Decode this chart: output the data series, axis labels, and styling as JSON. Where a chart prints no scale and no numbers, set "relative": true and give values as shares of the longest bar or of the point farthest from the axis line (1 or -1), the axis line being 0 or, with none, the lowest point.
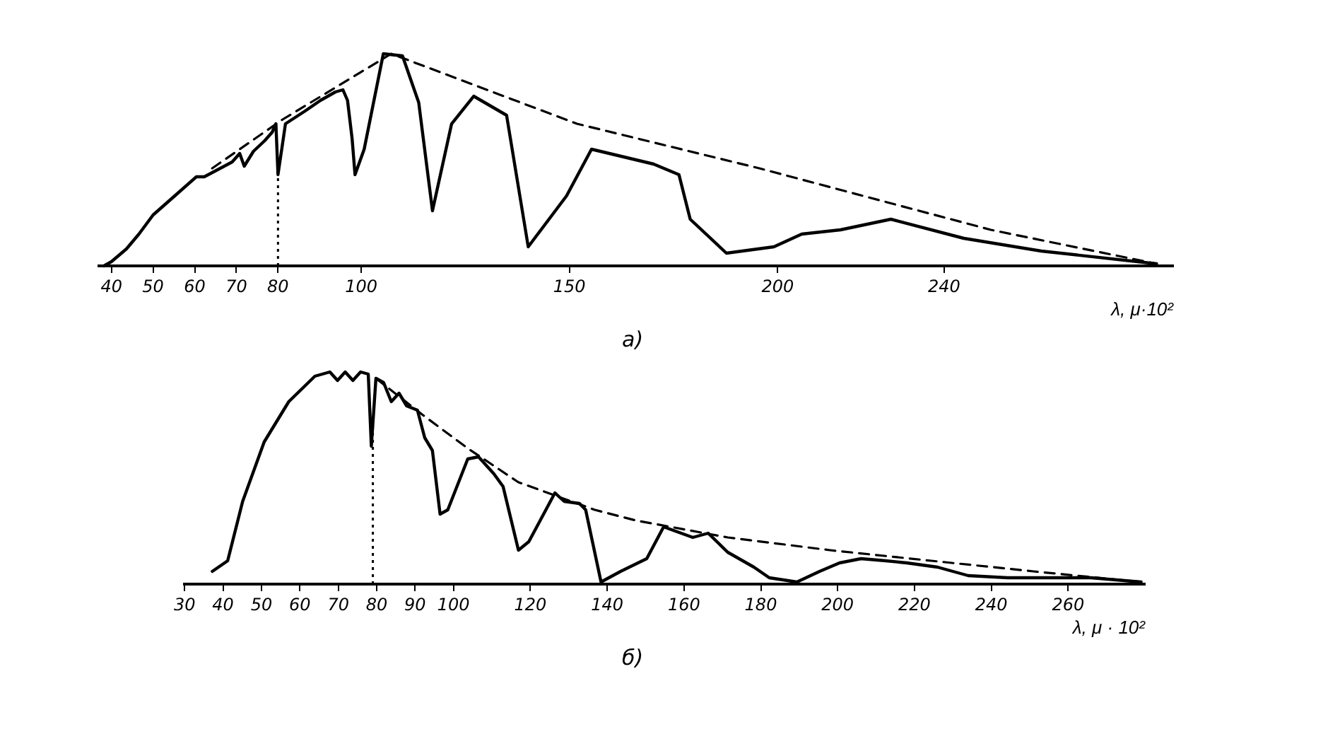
{
  "chart_data": [
    {
      "type": "line",
      "relative": true,
      "xlabel": "λ, μ·10²",
      "xlim": [
        37,
        295
      ],
      "xticks": [
        40,
        50,
        60,
        70,
        80,
        100,
        150,
        200,
        240
      ],
      "tick_labels": "x",
      "grid": false,
      "legend": false,
      "marker": "none",
      "annotations": [
        "а)"
      ],
      "ref_lines": [
        {
          "axis": "x",
          "value": 80,
          "line_style": "dotted",
          "color": "#000000"
        }
      ],
      "series": [
        {
          "color": "#000000",
          "line_style": "solid",
          "x": [
            38.2,
            40,
            43.6,
            46.6,
            50,
            55.2,
            60.4,
            62.3,
            67.1,
            69,
            70.8,
            71.9,
            74.1,
            76.8,
            78.6,
            79.5,
            80,
            81.8,
            86.5,
            90.2,
            93.8,
            95.6,
            96.7,
            97.8,
            98.5,
            100.7,
            105.3,
            109.9,
            113.8,
            117.1,
            121.7,
            127,
            134.9,
            140.1,
            149.3,
            155.3,
            170.2,
            176.3,
            179,
            187.7,
            199.1,
            205.8,
            215.1,
            227.2,
            244.7,
            263.3,
            291
          ],
          "values": [
            0,
            0.02,
            0.08,
            0.15,
            0.24,
            0.33,
            0.42,
            0.42,
            0.47,
            0.49,
            0.53,
            0.47,
            0.54,
            0.59,
            0.63,
            0.67,
            0.43,
            0.67,
            0.73,
            0.78,
            0.82,
            0.83,
            0.78,
            0.6,
            0.43,
            0.55,
            1,
            0.99,
            0.77,
            0.26,
            0.67,
            0.8,
            0.71,
            0.09,
            0.33,
            0.55,
            0.48,
            0.43,
            0.22,
            0.06,
            0.09,
            0.15,
            0.17,
            0.22,
            0.13,
            0.07,
            0.01
          ]
        },
        {
          "color": "#000000",
          "line_style": "dashed",
          "x": [
            64.2,
            81.1,
            107.2,
            151.8,
            195.6,
            251.2,
            291
          ],
          "values": [
            0.46,
            0.69,
            1,
            0.67,
            0.46,
            0.17,
            0.01
          ]
        }
      ]
    },
    {
      "type": "line",
      "relative": true,
      "xlabel": "λ, μ · 10²",
      "xlim": [
        30,
        280
      ],
      "xticks": [
        30,
        40,
        50,
        60,
        70,
        80,
        90,
        100,
        120,
        140,
        160,
        180,
        200,
        220,
        240,
        260
      ],
      "tick_labels": "x",
      "grid": false,
      "legend": false,
      "marker": "none",
      "annotations": [
        "б)"
      ],
      "ref_lines": [
        {
          "axis": "x",
          "value": 79,
          "line_style": "dotted",
          "color": "#000000"
        }
      ],
      "series": [
        {
          "color": "#000000",
          "line_style": "solid",
          "x": [
            37.2,
            41.2,
            45.1,
            50.7,
            57.1,
            63.9,
            67.8,
            69.8,
            71.8,
            73.8,
            75.8,
            77.8,
            78.6,
            79.8,
            81.8,
            83.8,
            85.8,
            87.8,
            90.6,
            92.5,
            94.5,
            96.5,
            98.5,
            103.7,
            106.5,
            110.5,
            112.9,
            116.9,
            119.6,
            126.4,
            128.8,
            132.8,
            134.4,
            138.4,
            143.5,
            150.3,
            154.7,
            162.3,
            166.3,
            171.4,
            178.2,
            182.2,
            189.4,
            195.3,
            200.5,
            206.1,
            212.5,
            218,
            226,
            234,
            244.3,
            255.1,
            265.9,
            279
          ],
          "values": [
            0.06,
            0.11,
            0.39,
            0.67,
            0.86,
            0.98,
            1,
            0.96,
            1,
            0.96,
            1,
            0.99,
            0.65,
            0.97,
            0.95,
            0.86,
            0.9,
            0.84,
            0.82,
            0.69,
            0.63,
            0.33,
            0.35,
            0.59,
            0.6,
            0.52,
            0.46,
            0.16,
            0.2,
            0.43,
            0.39,
            0.38,
            0.35,
            0.01,
            0.06,
            0.12,
            0.27,
            0.22,
            0.24,
            0.15,
            0.08,
            0.03,
            0.01,
            0.06,
            0.1,
            0.12,
            0.11,
            0.1,
            0.08,
            0.04,
            0.03,
            0.03,
            0.03,
            0.01
          ]
        },
        {
          "color": "#000000",
          "line_style": "dashed",
          "x": [
            79.8,
            91.8,
            103.7,
            116.9,
            136.8,
            147.5,
            171.4,
            198,
            224.4,
            251,
            279
          ],
          "values": [
            0.97,
            0.8,
            0.64,
            0.48,
            0.35,
            0.3,
            0.22,
            0.16,
            0.11,
            0.06,
            0.01
          ]
        }
      ]
    }
  ]
}
